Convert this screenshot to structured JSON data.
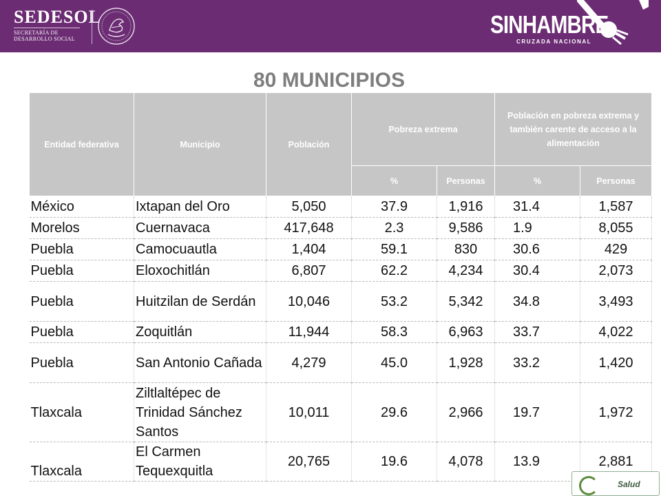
{
  "header": {
    "left_logo": {
      "name": "SEDESOL",
      "subtitle": "SECRETARÍA DE DESARROLLO SOCIAL",
      "subtitle_lines": [
        "SECRETARÍA DE",
        "DESARROLLO SOCIAL"
      ]
    },
    "right_logo": {
      "word_a": "SIN",
      "word_b": "HAMBRE",
      "tagline": "CRUZADA NACIONAL"
    },
    "colors": {
      "bar": "#6b2c73",
      "header_cells": "#c6c6c6",
      "title": "#7e7e7e"
    }
  },
  "title": "80 MUNICIPIOS",
  "table": {
    "headers": {
      "entidad": "Entidad federativa",
      "municipio": "Municipio",
      "poblacion": "Población",
      "pobreza_extrema": "Pobreza extrema",
      "pobreza_alimentacion": "Población en pobreza extrema y también carente de acceso a la alimentación",
      "pct": "%",
      "personas": "Personas"
    },
    "rows": [
      {
        "entidad": "México",
        "municipio": "Ixtapan del Oro",
        "poblacion": "5,050",
        "pe_pct": "37.9",
        "pe_personas": "1,916",
        "pa_pct": "31.4",
        "pa_personas": "1,587"
      },
      {
        "entidad": "Morelos",
        "municipio": "Cuernavaca",
        "poblacion": "417,648",
        "pe_pct": "2.3",
        "pe_personas": "9,586",
        "pa_pct": "1.9",
        "pa_personas": "8,055"
      },
      {
        "entidad": "Puebla",
        "municipio": "Camocuautla",
        "poblacion": "1,404",
        "pe_pct": "59.1",
        "pe_personas": "830",
        "pa_pct": "30.6",
        "pa_personas": "429"
      },
      {
        "entidad": "Puebla",
        "municipio": "Eloxochitlán",
        "poblacion": "6,807",
        "pe_pct": "62.2",
        "pe_personas": "4,234",
        "pa_pct": "30.4",
        "pa_personas": "2,073"
      },
      {
        "entidad": "Puebla",
        "municipio": "Huitzilan de Serdán",
        "poblacion": "10,046",
        "pe_pct": "53.2",
        "pe_personas": "5,342",
        "pa_pct": "34.8",
        "pa_personas": "3,493"
      },
      {
        "entidad": "Puebla",
        "municipio": "Zoquitlán",
        "poblacion": "11,944",
        "pe_pct": "58.3",
        "pe_personas": "6,963",
        "pa_pct": "33.7",
        "pa_personas": "4,022"
      },
      {
        "entidad": "Puebla",
        "municipio": "San Antonio Cañada",
        "poblacion": "4,279",
        "pe_pct": "45.0",
        "pe_personas": "1,928",
        "pa_pct": "33.2",
        "pa_personas": "1,420"
      },
      {
        "entidad": "Tlaxcala",
        "municipio": "Ziltlaltépec de Trinidad Sánchez Santos",
        "poblacion": "10,011",
        "pe_pct": "29.6",
        "pe_personas": "2,966",
        "pa_pct": "19.7",
        "pa_personas": "1,972"
      },
      {
        "entidad": "Tlaxcala",
        "municipio": "El Carmen Tequexquitla",
        "poblacion": "20,765",
        "pe_pct": "19.6",
        "pe_personas": "4,078",
        "pa_pct": "13.9",
        "pa_personas": "2,881"
      }
    ]
  },
  "footer": {
    "logo_text": "Salud"
  }
}
